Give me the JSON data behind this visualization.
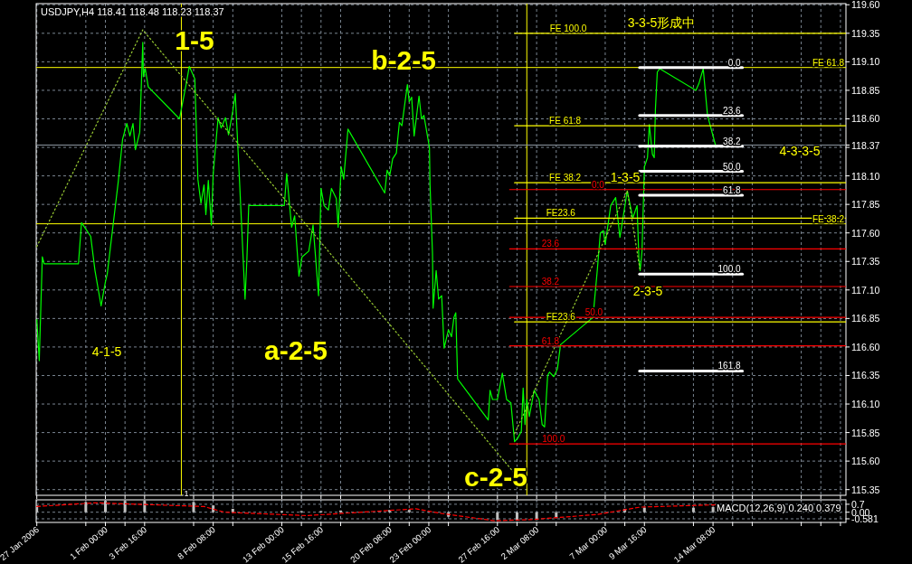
{
  "chart_data": [
    {
      "type": "line",
      "title": "USDJPY,H4 118.41 118.48 118.23 118.37",
      "xlim": [
        "2006-01-27T07:00",
        "2006-03-23T09:00"
      ],
      "ylim": [
        115.3,
        119.61
      ],
      "tick_labels": "y",
      "grid": true,
      "xticks": [
        {
          "value": "2006-01-27T08:00",
          "label": null
        },
        {
          "value": "2006-01-30T16:00",
          "label": null
        },
        {
          "value": "2006-02-01T00:00",
          "label": null
        },
        {
          "value": "2006-02-02T08:00",
          "label": null
        },
        {
          "value": "2006-02-03T16:00",
          "label": null
        },
        {
          "value": "2006-02-07T00:00",
          "label": null
        },
        {
          "value": "2006-02-08T08:00",
          "label": null
        },
        {
          "value": "2006-02-09T16:00",
          "label": null
        },
        {
          "value": "2006-02-13T00:00",
          "label": null
        },
        {
          "value": "2006-02-14T08:00",
          "label": null
        },
        {
          "value": "2006-02-15T16:00",
          "label": null
        },
        {
          "value": "2006-02-17T00:00",
          "label": null
        },
        {
          "value": "2006-02-20T08:00",
          "label": null
        },
        {
          "value": "2006-02-21T16:00",
          "label": null
        },
        {
          "value": "2006-02-23T00:00",
          "label": null
        },
        {
          "value": "2006-02-24T08:00",
          "label": null
        },
        {
          "value": "2006-02-27T16:00",
          "label": null
        },
        {
          "value": "2006-03-01T00:00",
          "label": null
        },
        {
          "value": "2006-03-02T08:00",
          "label": null
        },
        {
          "value": "2006-03-03T16:00",
          "label": null
        },
        {
          "value": "2006-03-07T00:00",
          "label": null
        },
        {
          "value": "2006-03-08T08:00",
          "label": null
        },
        {
          "value": "2006-03-09T16:00",
          "label": null
        },
        {
          "value": "2006-03-13T00:00",
          "label": null
        },
        {
          "value": "2006-03-14T08:00",
          "label": null
        },
        {
          "value": "2006-03-15T16:00",
          "label": null
        },
        {
          "value": "2006-03-17T00:00",
          "label": null
        },
        {
          "value": "2006-03-20T08:00",
          "label": null
        },
        {
          "value": "2006-03-21T16:00",
          "label": null
        },
        {
          "value": "2006-03-23T00:00",
          "label": null
        }
      ],
      "yticks": [
        {
          "value": 115.35,
          "label": "115.35"
        },
        {
          "value": 115.6,
          "label": "115.60"
        },
        {
          "value": 115.85,
          "label": "115.85"
        },
        {
          "value": 116.1,
          "label": "116.10"
        },
        {
          "value": 116.35,
          "label": "116.35"
        },
        {
          "value": 116.6,
          "label": "116.60"
        },
        {
          "value": 116.85,
          "label": "116.85"
        },
        {
          "value": 117.1,
          "label": "117.10"
        },
        {
          "value": 117.35,
          "label": "117.35"
        },
        {
          "value": 117.6,
          "label": "117.60"
        },
        {
          "value": 117.85,
          "label": "117.85"
        },
        {
          "value": 118.1,
          "label": "118.10"
        },
        {
          "value": 118.35,
          "label": null
        },
        {
          "value": 118.37,
          "label": "118.37"
        },
        {
          "value": 118.6,
          "label": "118.60"
        },
        {
          "value": 118.85,
          "label": "118.85"
        },
        {
          "value": 119.1,
          "label": "119.10"
        },
        {
          "value": 119.35,
          "label": "119.35"
        },
        {
          "value": 119.6,
          "label": "119.60"
        }
      ],
      "ref_lines": [
        {
          "axis": "x",
          "value": "2006-02-06T04:00",
          "label": null,
          "color": "#ffff00"
        },
        {
          "axis": "x",
          "value": "2006-03-01T16:00",
          "label": null,
          "color": "#ffff00"
        },
        {
          "axis": "y",
          "value": 119.05,
          "label": "FE 61.8",
          "color": "#ffff00"
        },
        {
          "axis": "y",
          "value": 117.68,
          "label": "FE 38.2",
          "color": "#ffff00"
        },
        {
          "axis": "y",
          "value": 118.37,
          "label": null,
          "color": "#8c96a0"
        }
      ],
      "series": [
        {
          "color": "#00ff00",
          "x": [
            "2006-01-27T08:00",
            "2006-01-27T12:00",
            "2006-01-27T17:00",
            "2006-01-27T20:00",
            "2006-01-30T04:00",
            "2006-01-30T09:00",
            "2006-01-30T14:00",
            "2006-01-31T00:00",
            "2006-01-31T07:00",
            "2006-01-31T17:00",
            "2006-02-01T00:00",
            "2006-02-01T03:00",
            "2006-02-01T13:00",
            "2006-02-01T21:00",
            "2006-02-02T04:00",
            "2006-02-02T11:00",
            "2006-02-02T16:00",
            "2006-02-02T21:00",
            "2006-02-03T01:00",
            "2006-02-03T08:00",
            "2006-02-03T13:00",
            "2006-02-03T14:00",
            "2006-02-03T17:00",
            "2006-02-03T22:00",
            "2006-02-06T01:00",
            "2006-02-06T11:00",
            "2006-02-06T17:00",
            "2006-02-07T02:00",
            "2006-02-07T07:00",
            "2006-02-07T12:00",
            "2006-02-07T17:00",
            "2006-02-07T20:00",
            "2006-02-08T00:00",
            "2006-02-08T05:00",
            "2006-02-08T08:00",
            "2006-02-08T16:00",
            "2006-02-08T21:00",
            "2006-02-09T04:00",
            "2006-02-09T09:00",
            "2006-02-09T16:00",
            "2006-02-09T20:00",
            "2006-02-10T03:00",
            "2006-02-10T12:00",
            "2006-02-10T15:00",
            "2006-02-10T18:00",
            "2006-02-13T04:00",
            "2006-02-13T08:00",
            "2006-02-13T16:00",
            "2006-02-13T21:00",
            "2006-02-14T04:00",
            "2006-02-14T09:00",
            "2006-02-14T20:00",
            "2006-02-15T03:00",
            "2006-02-15T12:00",
            "2006-02-15T16:00",
            "2006-02-15T21:00",
            "2006-02-16T04:00",
            "2006-02-16T09:00",
            "2006-02-16T17:00",
            "2006-02-16T20:00",
            "2006-02-17T01:00",
            "2006-02-17T05:00",
            "2006-02-17T12:00",
            "2006-02-20T00:00",
            "2006-02-20T04:00",
            "2006-02-20T08:00",
            "2006-02-20T13:00",
            "2006-02-20T19:00",
            "2006-02-21T00:00",
            "2006-02-21T04:00",
            "2006-02-21T13:00",
            "2006-02-21T16:00",
            "2006-02-21T20:00",
            "2006-02-22T00:00",
            "2006-02-22T08:00",
            "2006-02-22T12:00",
            "2006-02-22T16:00",
            "2006-02-23T01:00",
            "2006-02-23T02:00",
            "2006-02-23T06:00",
            "2006-02-23T07:00",
            "2006-02-23T12:00",
            "2006-02-23T16:00",
            "2006-02-23T21:00",
            "2006-02-24T01:00",
            "2006-02-24T08:00",
            "2006-02-24T13:00",
            "2006-02-24T17:00",
            "2006-02-24T20:00",
            "2006-02-24T23:00",
            "2006-02-27T01:00",
            "2006-02-27T04:00",
            "2006-02-27T08:00",
            "2006-02-27T16:00",
            "2006-02-28T00:00",
            "2006-02-28T07:00",
            "2006-02-28T14:00",
            "2006-02-28T20:00",
            "2006-03-01T01:00",
            "2006-03-01T07:00",
            "2006-03-01T10:00",
            "2006-03-01T13:00",
            "2006-03-01T16:00",
            "2006-03-01T20:00",
            "2006-03-02T04:00",
            "2006-03-02T12:00",
            "2006-03-02T17:00",
            "2006-03-02T21:00",
            "2006-03-03T02:00",
            "2006-03-03T05:00",
            "2006-03-03T12:00",
            "2006-03-03T18:00",
            "2006-03-03T23:00",
            "2006-03-06T04:00",
            "2006-03-06T11:00",
            "2006-03-06T16:00",
            "2006-03-06T21:00",
            "2006-03-07T00:00",
            "2006-03-07T09:00",
            "2006-03-07T17:00",
            "2006-03-08T00:00",
            "2006-03-08T12:00",
            "2006-03-08T21:00",
            "2006-03-09T04:00",
            "2006-03-09T07:00",
            "2006-03-09T09:00",
            "2006-03-09T12:00",
            "2006-03-09T16:00",
            "2006-03-09T21:00",
            "2006-03-10T00:00",
            "2006-03-10T05:00",
            "2006-03-10T08:00",
            "2006-03-10T10:00",
            "2006-03-10T13:00",
            "2006-03-10T17:00",
            "2006-03-13T04:00",
            "2006-03-13T09:00",
            "2006-03-13T16:00",
            "2006-03-13T23:00",
            "2006-03-14T12:00"
          ],
          "values": [
            116.84,
            116.48,
            117.39,
            117.33,
            117.33,
            117.69,
            117.65,
            117.57,
            117.27,
            116.96,
            117.17,
            117.24,
            117.69,
            118.05,
            118.42,
            118.56,
            118.45,
            118.56,
            118.33,
            118.48,
            119.27,
            118.97,
            119.04,
            118.88,
            118.6,
            118.88,
            119.06,
            118.95,
            118.07,
            117.86,
            118.02,
            117.76,
            118.06,
            117.67,
            118.12,
            118.61,
            118.52,
            118.61,
            118.46,
            118.67,
            118.82,
            118.05,
            117.02,
            117.37,
            117.84,
            117.84,
            118.12,
            117.65,
            117.75,
            117.22,
            117.39,
            117.44,
            117.67,
            117.05,
            117.99,
            117.84,
            117.8,
            117.99,
            117.9,
            117.65,
            118.18,
            118.07,
            118.51,
            117.95,
            118.15,
            118.1,
            118.25,
            118.3,
            118.57,
            118.54,
            118.9,
            118.75,
            118.79,
            118.45,
            118.8,
            118.6,
            118.63,
            118.35,
            118.02,
            117.42,
            116.94,
            117.27,
            117.02,
            117.05,
            116.59,
            116.75,
            116.69,
            116.86,
            116.9,
            116.32,
            115.96,
            116.22,
            116.14,
            116.14,
            116.37,
            116.14,
            116.11,
            115.77,
            115.8,
            115.86,
            116.24,
            115.92,
            116.14,
            115.99,
            116.22,
            116.14,
            115.92,
            115.9,
            116.35,
            116.38,
            116.34,
            116.41,
            116.62,
            116.86,
            117.27,
            117.6,
            117.62,
            117.5,
            117.84,
            117.91,
            117.56,
            117.97,
            117.73,
            117.84,
            117.37,
            117.27,
            117.44,
            118.18,
            118.26,
            118.55,
            118.29,
            118.26,
            118.69,
            119.01,
            119.04,
            118.85,
            118.91,
            119.04,
            118.63,
            118.37
          ]
        },
        {
          "color": "#9acd32",
          "line_style": "dotted",
          "x": [
            "2006-01-27T08:00",
            "2006-02-03T13:00",
            "2006-03-01T01:00"
          ],
          "values": [
            117.48,
            119.38,
            115.46
          ]
        },
        {
          "color": "#9acd32",
          "line_style": "dotted",
          "x": [
            "2006-02-28T20:00",
            "2006-03-08T12:00",
            "2006-03-09T09:00"
          ],
          "values": [
            115.84,
            117.97,
            117.27
          ]
        },
        {
          "name": "FE 100.0",
          "color": "#ffff00",
          "x": [
            "2006-02-28T20:00",
            "2006-03-23T09:00"
          ],
          "values": [
            119.35,
            119.35
          ]
        },
        {
          "name": "FE 61.8",
          "color": "#ffff00",
          "x": [
            "2006-02-28T20:00",
            "2006-03-23T09:00"
          ],
          "values": [
            118.54,
            118.54
          ]
        },
        {
          "name": "FE 38.2",
          "color": "#ffff00",
          "x": [
            "2006-02-28T20:00",
            "2006-03-23T09:00"
          ],
          "values": [
            118.04,
            118.04
          ]
        },
        {
          "name": "FE23.6",
          "color": "#ffff00",
          "x": [
            "2006-02-28T20:00",
            "2006-03-23T09:00"
          ],
          "values": [
            117.73,
            117.73
          ]
        },
        {
          "name": "FE23.6",
          "color": "#ffff00",
          "x": [
            "2006-02-28T20:00",
            "2006-03-23T09:00"
          ],
          "values": [
            116.82,
            116.82
          ]
        },
        {
          "name": "0.0",
          "color": "#ff0000",
          "x": [
            "2006-02-28T12:00",
            "2006-03-23T09:00"
          ],
          "values": [
            117.98,
            117.98
          ]
        },
        {
          "name": "23.6",
          "color": "#ff0000",
          "x": [
            "2006-02-28T12:00",
            "2006-03-23T09:00"
          ],
          "values": [
            117.46,
            117.46
          ]
        },
        {
          "name": "38.2",
          "color": "#ff0000",
          "x": [
            "2006-02-28T12:00",
            "2006-03-23T09:00"
          ],
          "values": [
            117.13,
            117.13
          ]
        },
        {
          "name": "50.0",
          "color": "#ff0000",
          "x": [
            "2006-02-28T12:00",
            "2006-03-23T09:00"
          ],
          "values": [
            116.86,
            116.86
          ]
        },
        {
          "name": "61.8",
          "color": "#ff0000",
          "x": [
            "2006-02-28T12:00",
            "2006-03-23T09:00"
          ],
          "values": [
            116.61,
            116.61
          ]
        },
        {
          "name": "100.0",
          "color": "#ff0000",
          "x": [
            "2006-02-28T12:00",
            "2006-03-23T09:00"
          ],
          "values": [
            115.75,
            115.75
          ]
        },
        {
          "name": "0.0",
          "color": "#ffffff",
          "x": [
            "2006-03-09T08:00",
            "2006-03-16T08:00"
          ],
          "values": [
            119.05,
            119.05
          ]
        },
        {
          "name": "23.6",
          "color": "#ffffff",
          "x": [
            "2006-03-09T08:00",
            "2006-03-16T08:00"
          ],
          "values": [
            118.63,
            118.63
          ]
        },
        {
          "name": "38.2",
          "color": "#ffffff",
          "x": [
            "2006-03-09T08:00",
            "2006-03-16T08:00"
          ],
          "values": [
            118.36,
            118.36
          ]
        },
        {
          "name": "50.0",
          "color": "#ffffff",
          "x": [
            "2006-03-09T08:00",
            "2006-03-16T08:00"
          ],
          "values": [
            118.14,
            118.14
          ]
        },
        {
          "name": "61.8",
          "color": "#ffffff",
          "x": [
            "2006-03-09T08:00",
            "2006-03-16T08:00"
          ],
          "values": [
            117.93,
            117.93
          ]
        },
        {
          "name": "100.0",
          "color": "#ffffff",
          "x": [
            "2006-03-09T08:00",
            "2006-03-16T08:00"
          ],
          "values": [
            117.24,
            117.24
          ]
        },
        {
          "name": "161.8",
          "color": "#ffffff",
          "x": [
            "2006-03-09T08:00",
            "2006-03-16T08:00"
          ],
          "values": [
            116.39,
            116.39
          ]
        }
      ],
      "annotations": [
        "1-5",
        "b-2-5",
        "a-2-5",
        "c-2-5",
        "3-3-5形成中",
        "4-3-3-5",
        "1-3-5",
        "2-3-5",
        "4-1-5",
        "1"
      ]
    },
    {
      "type": "bar",
      "title": "MACD(12,26,9) 0.240 0.379",
      "xlim": [
        "2006-01-27T07:00",
        "2006-03-23T09:00"
      ],
      "ylim": [
        -0.9,
        1.09
      ],
      "grid": true,
      "xticks": [
        {
          "value": "2006-01-27T08:00",
          "label": "27 Jan 2006"
        },
        {
          "value": "2006-01-30T16:00",
          "label": null
        },
        {
          "value": "2006-02-01T00:00",
          "label": "1 Feb 00:00"
        },
        {
          "value": "2006-02-02T08:00",
          "label": null
        },
        {
          "value": "2006-02-03T16:00",
          "label": "3 Feb 16:00"
        },
        {
          "value": "2006-02-07T00:00",
          "label": null
        },
        {
          "value": "2006-02-08T08:00",
          "label": "8 Feb 08:00"
        },
        {
          "value": "2006-02-09T16:00",
          "label": null
        },
        {
          "value": "2006-02-13T00:00",
          "label": "13 Feb 00:00"
        },
        {
          "value": "2006-02-14T08:00",
          "label": null
        },
        {
          "value": "2006-02-15T16:00",
          "label": "15 Feb 16:00"
        },
        {
          "value": "2006-02-17T00:00",
          "label": null
        },
        {
          "value": "2006-02-20T08:00",
          "label": "20 Feb 08:00"
        },
        {
          "value": "2006-02-21T16:00",
          "label": null
        },
        {
          "value": "2006-02-23T00:00",
          "label": "23 Feb 00:00"
        },
        {
          "value": "2006-02-24T08:00",
          "label": null
        },
        {
          "value": "2006-02-27T16:00",
          "label": "27 Feb 16:00"
        },
        {
          "value": "2006-03-01T00:00",
          "label": null
        },
        {
          "value": "2006-03-02T08:00",
          "label": "2 Mar 08:00"
        },
        {
          "value": "2006-03-03T16:00",
          "label": null
        },
        {
          "value": "2006-03-07T00:00",
          "label": "7 Mar 00:00"
        },
        {
          "value": "2006-03-08T08:00",
          "label": null
        },
        {
          "value": "2006-03-09T16:00",
          "label": "9 Mar 16:00"
        },
        {
          "value": "2006-03-13T00:00",
          "label": null
        },
        {
          "value": "2006-03-14T08:00",
          "label": "14 Mar 08:00"
        },
        {
          "value": "2006-03-15T16:00",
          "label": null
        },
        {
          "value": "2006-03-17T00:00",
          "label": null
        },
        {
          "value": "2006-03-20T08:00",
          "label": null
        },
        {
          "value": "2006-03-21T16:00",
          "label": null
        },
        {
          "value": "2006-03-23T00:00",
          "label": null
        }
      ],
      "yticks": [
        {
          "value": 0.7,
          "label": "0.7"
        },
        {
          "value": 0,
          "label": "0.00"
        },
        {
          "value": -0.581,
          "label": "-0.581"
        }
      ],
      "x": [
        "2006-01-27T08:00",
        "2006-01-30T16:00",
        "2006-02-01T00:00",
        "2006-02-02T08:00",
        "2006-02-03T16:00",
        "2006-02-07T00:00",
        "2006-02-08T08:00",
        "2006-02-09T16:00",
        "2006-02-13T00:00",
        "2006-02-14T08:00",
        "2006-02-15T16:00",
        "2006-02-17T00:00",
        "2006-02-20T08:00",
        "2006-02-21T16:00",
        "2006-02-23T00:00",
        "2006-02-24T08:00",
        "2006-02-27T16:00",
        "2006-03-01T00:00",
        "2006-03-02T08:00",
        "2006-03-03T16:00",
        "2006-03-07T00:00",
        "2006-03-08T08:00",
        "2006-03-09T16:00",
        "2006-03-13T00:00",
        "2006-03-14T08:00"
      ],
      "series": [
        {
          "color": "#c0c0c0",
          "values": [
            0.6,
            0.9,
            1.0,
            1.0,
            1.0,
            0.9,
            0.6,
            0.3,
            0.1,
            0.1,
            0.1,
            0.15,
            0.2,
            0.2,
            0.0,
            -0.4,
            -0.7,
            -0.75,
            -0.7,
            -0.45,
            0.0,
            0.3,
            0.4,
            0.4,
            0.45
          ]
        },
        {
          "type": "line",
          "color": "#ff0000",
          "line_style": "dashed",
          "x": [
            "2006-01-27T08:00",
            "2006-01-31T07:00",
            "2006-02-07T17:00",
            "2006-02-09T02:00",
            "2006-02-14T17:00",
            "2006-02-15T23:00",
            "2006-02-22T03:00",
            "2006-02-23T19:00",
            "2006-02-27T11:00",
            "2006-03-01T23:00",
            "2006-03-06T11:00",
            "2006-03-09T09:00",
            "2006-03-14T12:00"
          ],
          "values": [
            0.5,
            0.83,
            0.5,
            0.0,
            -0.3,
            -0.2,
            0.3,
            -0.1,
            -0.75,
            -0.65,
            -0.2,
            0.45,
            0.65
          ]
        }
      ]
    }
  ]
}
